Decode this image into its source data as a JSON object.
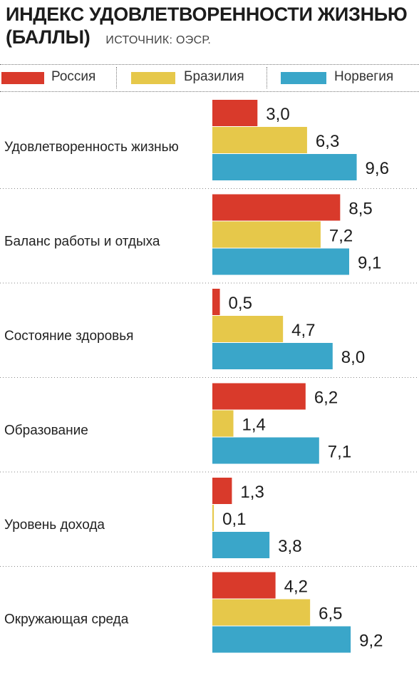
{
  "chart_data": {
    "type": "bar",
    "orientation": "horizontal",
    "title": "ИНДЕКС УДОВЛЕТВОРЕННОСТИ ЖИЗНЬЮ",
    "subtitle": "(БАЛЛЫ)",
    "source": "ИСТОЧНИК: ОЭСР.",
    "categories": [
      "Удовлетворенность жизнью",
      "Баланс работы и отдыха",
      "Состояние здоровья",
      "Образование",
      "Уровень дохода",
      "Окружающая среда"
    ],
    "series": [
      {
        "name": "Россия",
        "color": "#d93a2b",
        "values": [
          3.0,
          8.5,
          0.5,
          6.2,
          1.3,
          4.2
        ],
        "labels": [
          "3,0",
          "8,5",
          "0,5",
          "6,2",
          "1,3",
          "4,2"
        ]
      },
      {
        "name": "Бразилия",
        "color": "#e6c84a",
        "values": [
          6.3,
          7.2,
          4.7,
          1.4,
          0.1,
          6.5
        ],
        "labels": [
          "6,3",
          "7,2",
          "4,7",
          "1,4",
          "0,1",
          "6,5"
        ]
      },
      {
        "name": "Норвегия",
        "color": "#3aa6c9",
        "values": [
          9.6,
          9.1,
          8.0,
          7.1,
          3.8,
          9.2
        ],
        "labels": [
          "9,6",
          "9,1",
          "8,0",
          "7,1",
          "3,8",
          "9,2"
        ]
      }
    ],
    "xlim": [
      0,
      10
    ],
    "legend_position": "top",
    "grid": false
  }
}
